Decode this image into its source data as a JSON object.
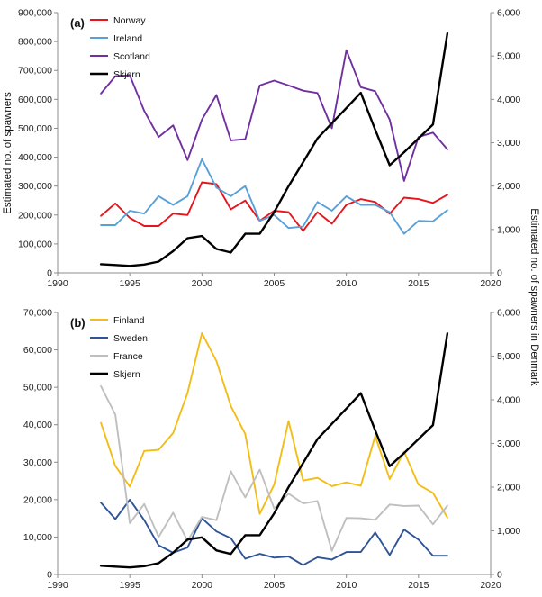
{
  "ylabel_left": "Estimated no. of spawners",
  "ylabel_right": "Estimated no. of spawners in Denmark",
  "chart_data": [
    {
      "type": "line",
      "panel_label": "(a)",
      "x_range": [
        1990,
        2020
      ],
      "x_ticks": [
        1990,
        1995,
        2000,
        2005,
        2010,
        2015,
        2020
      ],
      "y_left_range": [
        0,
        900000
      ],
      "y_left_ticks": [
        "0",
        "100,000",
        "200,000",
        "300,000",
        "400,000",
        "500,000",
        "600,000",
        "700,000",
        "800,000",
        "900,000"
      ],
      "y_right_range": [
        0,
        6000
      ],
      "y_right_ticks": [
        "0",
        "1,000",
        "2,000",
        "3,000",
        "4,000",
        "5,000",
        "6,000"
      ],
      "legend_position": "top-left",
      "series": [
        {
          "name": "Norway",
          "axis": "left",
          "color": "#e8141b",
          "x": [
            1993,
            1994,
            1995,
            1996,
            1997,
            1998,
            1999,
            2000,
            2001,
            2002,
            2003,
            2004,
            2005,
            2006,
            2007,
            2008,
            2009,
            2010,
            2011,
            2012,
            2013,
            2014,
            2015,
            2016,
            2017
          ],
          "values": [
            197000,
            240000,
            190000,
            162000,
            162000,
            205000,
            200000,
            313000,
            307000,
            220000,
            250000,
            180000,
            215000,
            210000,
            145000,
            210000,
            170000,
            235000,
            255000,
            245000,
            205000,
            260000,
            255000,
            242000,
            270000
          ]
        },
        {
          "name": "Ireland",
          "axis": "left",
          "color": "#5aa0d8",
          "x": [
            1993,
            1994,
            1995,
            1996,
            1997,
            1998,
            1999,
            2000,
            2001,
            2002,
            2003,
            2004,
            2005,
            2006,
            2007,
            2008,
            2009,
            2010,
            2011,
            2012,
            2013,
            2014,
            2015,
            2016,
            2017
          ],
          "values": [
            165000,
            165000,
            215000,
            205000,
            265000,
            235000,
            265000,
            393000,
            295000,
            265000,
            300000,
            180000,
            200000,
            155000,
            160000,
            245000,
            215000,
            265000,
            235000,
            235000,
            210000,
            135000,
            180000,
            178000,
            217000
          ]
        },
        {
          "name": "Scotland",
          "axis": "left",
          "color": "#7030a0",
          "x": [
            1993,
            1994,
            1995,
            1996,
            1997,
            1998,
            1999,
            2000,
            2001,
            2002,
            2003,
            2004,
            2005,
            2006,
            2007,
            2008,
            2009,
            2010,
            2011,
            2012,
            2013,
            2014,
            2015,
            2016,
            2017
          ],
          "values": [
            620000,
            680000,
            683000,
            560000,
            470000,
            510000,
            390000,
            530000,
            615000,
            458000,
            462000,
            648000,
            665000,
            648000,
            630000,
            622000,
            500000,
            770000,
            642000,
            628000,
            530000,
            318000,
            470000,
            485000,
            427000
          ]
        },
        {
          "name": "Skjern",
          "axis": "right",
          "color": "#000000",
          "x": [
            1993,
            1994,
            1995,
            1996,
            1997,
            1998,
            1999,
            2000,
            2001,
            2002,
            2003,
            2004,
            2005,
            2006,
            2007,
            2008,
            2009,
            2010,
            2011,
            2012,
            2013,
            2014,
            2015,
            2016,
            2017
          ],
          "values": [
            200,
            180,
            160,
            190,
            260,
            500,
            800,
            850,
            550,
            470,
            900,
            900,
            1400,
            2000,
            2550,
            3100,
            3450,
            3800,
            4150,
            3300,
            2480,
            2780,
            3100,
            3420,
            5520
          ]
        }
      ]
    },
    {
      "type": "line",
      "panel_label": "(b)",
      "x_range": [
        1990,
        2020
      ],
      "x_ticks": [
        1990,
        1995,
        2000,
        2005,
        2010,
        2015,
        2020
      ],
      "y_left_range": [
        0,
        70000
      ],
      "y_left_ticks": [
        "0",
        "10,000",
        "20,000",
        "30,000",
        "40,000",
        "50,000",
        "60,000",
        "70,000"
      ],
      "y_right_range": [
        0,
        6000
      ],
      "y_right_ticks": [
        "0",
        "1,000",
        "2,000",
        "3,000",
        "4,000",
        "5,000",
        "6,000"
      ],
      "legend_position": "top-left",
      "series": [
        {
          "name": "Finland",
          "axis": "left",
          "color": "#f2bd16",
          "x": [
            1993,
            1994,
            1995,
            1996,
            1997,
            1998,
            1999,
            2000,
            2001,
            2002,
            2003,
            2004,
            2005,
            2006,
            2007,
            2008,
            2009,
            2010,
            2011,
            2012,
            2013,
            2014,
            2015,
            2016,
            2017
          ],
          "values": [
            40500,
            29000,
            23500,
            33000,
            33300,
            37800,
            48500,
            64500,
            57000,
            45000,
            37500,
            16200,
            24000,
            41000,
            25100,
            25800,
            23600,
            24600,
            23700,
            37000,
            25500,
            32800,
            24000,
            21800,
            15200
          ]
        },
        {
          "name": "Sweden",
          "axis": "left",
          "color": "#2f5597",
          "x": [
            1993,
            1994,
            1995,
            1996,
            1997,
            1998,
            1999,
            2000,
            2001,
            2002,
            2003,
            2004,
            2005,
            2006,
            2007,
            2008,
            2009,
            2010,
            2011,
            2012,
            2013,
            2014,
            2015,
            2016,
            2017
          ],
          "values": [
            19200,
            14800,
            20000,
            14500,
            7800,
            5800,
            7200,
            15000,
            11500,
            9700,
            4200,
            5500,
            4500,
            4800,
            2500,
            4600,
            4000,
            6000,
            6000,
            11200,
            5200,
            12000,
            9300,
            5000,
            5000
          ]
        },
        {
          "name": "France",
          "axis": "left",
          "color": "#bfbfbf",
          "x": [
            1993,
            1994,
            1995,
            1996,
            1997,
            1998,
            1999,
            2000,
            2001,
            2002,
            2003,
            2004,
            2005,
            2006,
            2007,
            2008,
            2009,
            2010,
            2011,
            2012,
            2013,
            2014,
            2015,
            2016,
            2017
          ],
          "values": [
            50300,
            42700,
            13700,
            18800,
            10000,
            16500,
            9000,
            15400,
            14500,
            27600,
            20600,
            28000,
            17600,
            21600,
            19000,
            19600,
            6300,
            15100,
            15000,
            14600,
            18700,
            18300,
            18400,
            13400,
            18400
          ]
        },
        {
          "name": "Skjern",
          "axis": "right",
          "color": "#000000",
          "x": [
            1993,
            1994,
            1995,
            1996,
            1997,
            1998,
            1999,
            2000,
            2001,
            2002,
            2003,
            2004,
            2005,
            2006,
            2007,
            2008,
            2009,
            2010,
            2011,
            2012,
            2013,
            2014,
            2015,
            2016,
            2017
          ],
          "values": [
            200,
            180,
            160,
            190,
            260,
            500,
            800,
            850,
            550,
            470,
            900,
            900,
            1400,
            2000,
            2550,
            3100,
            3450,
            3800,
            4150,
            3300,
            2480,
            2780,
            3100,
            3420,
            5520
          ]
        }
      ]
    }
  ]
}
